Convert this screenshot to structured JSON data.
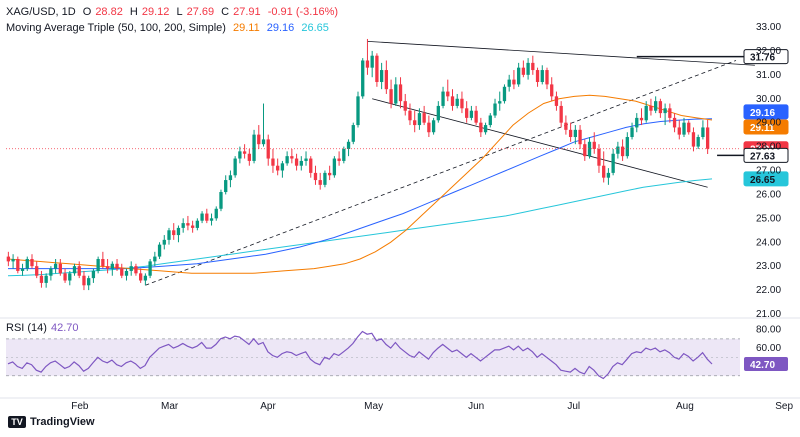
{
  "header": {
    "symbol": "XAG/USD, 1D",
    "open_label": "O",
    "open": "28.82",
    "high_label": "H",
    "high": "29.12",
    "low_label": "L",
    "low": "27.69",
    "close_label": "C",
    "close": "27.91",
    "change": "-0.91 (-3.16%)",
    "ma_title": "Moving Average Triple (50, 100, 200, Simple)",
    "ma50": "29.11",
    "ma100": "29.16",
    "ma200": "26.65"
  },
  "rsi_header": {
    "label": "RSI (14)",
    "value": "42.70"
  },
  "brand": {
    "logo": "TV",
    "name": "TradingView"
  },
  "colors": {
    "up": "#089981",
    "down": "#f23645",
    "ma50": "#f57c00",
    "ma100": "#2962ff",
    "ma200": "#26c6da",
    "rsi": "#7e57c2",
    "rsi_band": "#ede7f6",
    "trend": "#131722"
  },
  "chart_data": [
    {
      "type": "candlestick",
      "ylim": [
        21.0,
        33.0
      ],
      "y_ticks": [
        "33.00",
        "32.00",
        "31.00",
        "30.00",
        "29.00",
        "28.00",
        "27.00",
        "26.00",
        "25.00",
        "24.00",
        "23.00",
        "22.00",
        "21.00"
      ],
      "x_labels": [
        "Feb",
        "Mar",
        "Apr",
        "May",
        "Jun",
        "Jul",
        "Aug",
        "Sep"
      ],
      "x_label_index": [
        15,
        34,
        55,
        77,
        99,
        120,
        143,
        164
      ],
      "candles": [
        [
          23.4,
          23.6,
          23.0,
          23.2
        ],
        [
          23.2,
          23.5,
          22.9,
          23.3
        ],
        [
          23.3,
          23.4,
          22.7,
          22.8
        ],
        [
          22.8,
          23.1,
          22.6,
          22.9
        ],
        [
          22.9,
          23.4,
          22.8,
          23.3
        ],
        [
          23.3,
          23.5,
          22.9,
          23.0
        ],
        [
          23.0,
          23.2,
          22.5,
          22.6
        ],
        [
          22.6,
          22.8,
          22.1,
          22.3
        ],
        [
          22.3,
          22.7,
          22.1,
          22.6
        ],
        [
          22.6,
          23.0,
          22.4,
          22.9
        ],
        [
          22.9,
          23.3,
          22.7,
          23.1
        ],
        [
          23.1,
          23.3,
          22.6,
          22.7
        ],
        [
          22.7,
          22.9,
          22.3,
          22.4
        ],
        [
          22.4,
          22.8,
          22.2,
          22.7
        ],
        [
          22.7,
          23.1,
          22.6,
          23.0
        ],
        [
          23.0,
          23.2,
          22.5,
          22.6
        ],
        [
          22.6,
          22.8,
          22.0,
          22.2
        ],
        [
          22.2,
          22.6,
          22.0,
          22.5
        ],
        [
          22.5,
          22.9,
          22.3,
          22.8
        ],
        [
          22.8,
          23.4,
          22.7,
          23.3
        ],
        [
          23.3,
          23.6,
          22.9,
          23.0
        ],
        [
          23.0,
          23.3,
          22.7,
          22.9
        ],
        [
          22.9,
          23.2,
          22.6,
          23.1
        ],
        [
          23.1,
          23.3,
          22.8,
          22.9
        ],
        [
          22.9,
          23.1,
          22.5,
          22.6
        ],
        [
          22.6,
          22.9,
          22.4,
          22.8
        ],
        [
          22.8,
          23.2,
          22.6,
          23.0
        ],
        [
          23.0,
          23.1,
          22.6,
          22.7
        ],
        [
          22.7,
          22.9,
          22.3,
          22.4
        ],
        [
          22.4,
          22.7,
          22.2,
          22.6
        ],
        [
          22.6,
          23.3,
          22.5,
          23.2
        ],
        [
          23.2,
          23.6,
          23.0,
          23.4
        ],
        [
          23.4,
          24.0,
          23.3,
          23.9
        ],
        [
          23.9,
          24.3,
          23.7,
          24.1
        ],
        [
          24.1,
          24.6,
          23.9,
          24.5
        ],
        [
          24.5,
          24.8,
          24.1,
          24.3
        ],
        [
          24.3,
          24.7,
          24.0,
          24.6
        ],
        [
          24.6,
          25.0,
          24.4,
          24.8
        ],
        [
          24.8,
          25.1,
          24.5,
          24.7
        ],
        [
          24.7,
          24.9,
          24.4,
          24.6
        ],
        [
          24.6,
          25.0,
          24.5,
          24.9
        ],
        [
          24.9,
          25.3,
          24.8,
          25.2
        ],
        [
          25.2,
          25.4,
          24.8,
          24.9
        ],
        [
          24.9,
          25.2,
          24.7,
          25.0
        ],
        [
          25.0,
          25.5,
          24.9,
          25.4
        ],
        [
          25.4,
          26.2,
          25.3,
          26.1
        ],
        [
          26.1,
          26.8,
          26.0,
          26.6
        ],
        [
          26.6,
          27.0,
          26.3,
          26.8
        ],
        [
          26.8,
          27.6,
          26.7,
          27.5
        ],
        [
          27.5,
          28.0,
          27.3,
          27.8
        ],
        [
          27.8,
          28.1,
          27.5,
          27.7
        ],
        [
          27.7,
          27.9,
          27.2,
          27.4
        ],
        [
          27.4,
          28.7,
          27.3,
          28.5
        ],
        [
          28.5,
          28.9,
          27.9,
          28.1
        ],
        [
          28.1,
          29.8,
          28.0,
          28.3
        ],
        [
          28.3,
          28.5,
          27.2,
          27.5
        ],
        [
          27.5,
          27.9,
          26.9,
          27.2
        ],
        [
          27.2,
          27.5,
          26.8,
          27.0
        ],
        [
          27.0,
          27.4,
          26.7,
          27.3
        ],
        [
          27.3,
          27.8,
          27.2,
          27.6
        ],
        [
          27.6,
          27.9,
          27.3,
          27.5
        ],
        [
          27.5,
          27.7,
          27.0,
          27.2
        ],
        [
          27.2,
          27.6,
          27.0,
          27.4
        ],
        [
          27.4,
          27.8,
          27.2,
          27.5
        ],
        [
          27.5,
          27.6,
          26.7,
          26.9
        ],
        [
          26.9,
          27.2,
          26.4,
          26.6
        ],
        [
          26.6,
          26.9,
          26.2,
          26.4
        ],
        [
          26.4,
          27.0,
          26.3,
          26.9
        ],
        [
          26.9,
          27.2,
          26.6,
          26.8
        ],
        [
          26.8,
          27.6,
          26.7,
          27.5
        ],
        [
          27.5,
          27.8,
          27.2,
          27.4
        ],
        [
          27.4,
          28.0,
          27.3,
          27.9
        ],
        [
          27.9,
          28.3,
          27.6,
          28.2
        ],
        [
          28.2,
          29.0,
          28.1,
          28.9
        ],
        [
          28.9,
          30.3,
          28.8,
          30.1
        ],
        [
          30.1,
          31.7,
          30.0,
          31.6
        ],
        [
          31.6,
          32.5,
          31.0,
          31.3
        ],
        [
          31.3,
          32.0,
          30.9,
          31.8
        ],
        [
          31.8,
          31.9,
          30.5,
          30.7
        ],
        [
          30.7,
          31.5,
          30.4,
          31.2
        ],
        [
          31.2,
          31.6,
          30.2,
          30.4
        ],
        [
          30.4,
          30.8,
          29.6,
          29.8
        ],
        [
          29.8,
          30.9,
          29.7,
          30.6
        ],
        [
          30.6,
          30.9,
          29.6,
          29.9
        ],
        [
          29.9,
          30.2,
          29.3,
          29.5
        ],
        [
          29.5,
          29.8,
          28.9,
          29.1
        ],
        [
          29.1,
          29.5,
          28.6,
          28.9
        ],
        [
          28.9,
          29.6,
          28.7,
          29.4
        ],
        [
          29.4,
          29.7,
          28.9,
          29.0
        ],
        [
          29.0,
          29.3,
          28.4,
          28.6
        ],
        [
          28.6,
          29.2,
          28.5,
          29.1
        ],
        [
          29.1,
          29.9,
          29.0,
          29.7
        ],
        [
          29.7,
          30.5,
          29.6,
          30.3
        ],
        [
          30.3,
          30.8,
          29.9,
          30.1
        ],
        [
          30.1,
          30.4,
          29.5,
          29.7
        ],
        [
          29.7,
          30.2,
          29.6,
          30.0
        ],
        [
          30.0,
          30.3,
          29.4,
          29.6
        ],
        [
          29.6,
          29.9,
          29.0,
          29.2
        ],
        [
          29.2,
          29.7,
          29.1,
          29.5
        ],
        [
          29.5,
          29.7,
          28.9,
          29.0
        ],
        [
          29.0,
          29.2,
          28.4,
          28.6
        ],
        [
          28.6,
          29.0,
          28.5,
          28.9
        ],
        [
          28.9,
          29.4,
          28.8,
          29.3
        ],
        [
          29.3,
          30.0,
          29.2,
          29.8
        ],
        [
          29.8,
          30.3,
          29.5,
          29.9
        ],
        [
          29.9,
          30.6,
          29.8,
          30.5
        ],
        [
          30.5,
          31.0,
          30.3,
          30.8
        ],
        [
          30.8,
          31.2,
          30.4,
          30.6
        ],
        [
          30.6,
          31.5,
          30.5,
          31.3
        ],
        [
          31.3,
          31.6,
          30.9,
          31.0
        ],
        [
          31.0,
          31.7,
          30.8,
          31.5
        ],
        [
          31.5,
          31.8,
          31.0,
          31.2
        ],
        [
          31.2,
          31.3,
          30.5,
          30.7
        ],
        [
          30.7,
          31.4,
          30.6,
          31.2
        ],
        [
          31.2,
          31.3,
          30.4,
          30.6
        ],
        [
          30.6,
          30.9,
          29.9,
          30.1
        ],
        [
          30.1,
          30.3,
          29.5,
          29.7
        ],
        [
          29.7,
          29.9,
          28.8,
          29.0
        ],
        [
          29.0,
          29.3,
          28.5,
          28.7
        ],
        [
          28.7,
          29.0,
          28.2,
          28.4
        ],
        [
          28.4,
          28.9,
          28.1,
          28.7
        ],
        [
          28.7,
          28.9,
          27.9,
          28.1
        ],
        [
          28.1,
          28.3,
          27.4,
          27.6
        ],
        [
          27.6,
          28.4,
          27.5,
          28.2
        ],
        [
          28.2,
          28.6,
          27.7,
          27.9
        ],
        [
          27.9,
          28.1,
          26.9,
          27.2
        ],
        [
          27.2,
          27.8,
          26.5,
          26.7
        ],
        [
          26.7,
          27.1,
          26.4,
          26.9
        ],
        [
          26.9,
          27.9,
          26.8,
          27.7
        ],
        [
          27.7,
          28.2,
          27.5,
          28.0
        ],
        [
          28.0,
          28.3,
          27.4,
          27.6
        ],
        [
          27.6,
          28.6,
          27.5,
          28.4
        ],
        [
          28.4,
          29.0,
          28.3,
          28.8
        ],
        [
          28.8,
          29.4,
          28.6,
          29.2
        ],
        [
          29.2,
          29.6,
          28.9,
          29.1
        ],
        [
          29.1,
          29.9,
          29.0,
          29.7
        ],
        [
          29.7,
          30.0,
          29.3,
          29.5
        ],
        [
          29.5,
          30.1,
          29.4,
          29.9
        ],
        [
          29.9,
          30.0,
          29.2,
          29.4
        ],
        [
          29.4,
          29.8,
          28.9,
          29.6
        ],
        [
          29.6,
          29.8,
          29.0,
          29.2
        ],
        [
          29.2,
          29.4,
          28.6,
          28.8
        ],
        [
          28.8,
          29.1,
          28.3,
          28.5
        ],
        [
          28.5,
          29.2,
          28.4,
          29.0
        ],
        [
          29.0,
          29.1,
          28.5,
          28.6
        ],
        [
          28.6,
          28.8,
          27.8,
          28.0
        ],
        [
          28.0,
          28.5,
          27.9,
          28.4
        ],
        [
          28.4,
          29.1,
          28.3,
          28.8
        ],
        [
          28.8,
          29.12,
          27.69,
          27.91
        ]
      ],
      "ma50": [
        23.3,
        23.25,
        23.2,
        23.15,
        23.1,
        23.05,
        23.0,
        22.95,
        22.9,
        22.85,
        22.8,
        22.75,
        22.7,
        22.7,
        22.7,
        22.7,
        22.7,
        22.75,
        22.8,
        22.85,
        22.9,
        23.0,
        23.1,
        23.3,
        23.6,
        24.0,
        24.5,
        25.1,
        25.7,
        26.3,
        26.9,
        27.5,
        28.2,
        28.9,
        29.4,
        29.8,
        30.0,
        30.1,
        30.15,
        30.1,
        30.0,
        29.9,
        29.7,
        29.5,
        29.3,
        29.2,
        29.11
      ],
      "ma100": [
        22.9,
        22.9,
        22.9,
        22.9,
        22.9,
        22.9,
        22.9,
        22.9,
        22.95,
        23.0,
        23.05,
        23.1,
        23.2,
        23.3,
        23.4,
        23.5,
        23.65,
        23.8,
        24.0,
        24.2,
        24.45,
        24.7,
        24.95,
        25.2,
        25.5,
        25.8,
        26.1,
        26.4,
        26.7,
        27.0,
        27.3,
        27.6,
        27.9,
        28.2,
        28.4,
        28.6,
        28.8,
        28.95,
        29.05,
        29.1,
        29.15,
        29.16
      ],
      "ma200": [
        22.6,
        22.62,
        22.65,
        22.7,
        22.75,
        22.8,
        22.85,
        22.92,
        23.0,
        23.1,
        23.2,
        23.3,
        23.4,
        23.5,
        23.6,
        23.7,
        23.8,
        23.9,
        24.0,
        24.1,
        24.2,
        24.3,
        24.4,
        24.5,
        24.6,
        24.7,
        24.8,
        24.9,
        25.0,
        25.1,
        25.25,
        25.4,
        25.55,
        25.7,
        25.85,
        26.0,
        26.15,
        26.3,
        26.4,
        26.5,
        26.58,
        26.65
      ],
      "horizontal_levels": [
        31.76,
        27.63
      ],
      "last_close_line": 27.91,
      "price_labels": [
        {
          "text": "31.76",
          "bg": "#ffffff",
          "fg": "#131722"
        },
        {
          "text": "29.16",
          "bg": "#2962ff",
          "fg": "#ffffff"
        },
        {
          "text": "29.11",
          "bg": "#f57c00",
          "fg": "#ffffff"
        },
        {
          "text": "27.91",
          "bg": "#f23645",
          "fg": "#ffffff"
        },
        {
          "text": "27.63",
          "bg": "#ffffff",
          "fg": "#131722"
        },
        {
          "text": "26.65",
          "bg": "#26c6da",
          "fg": "#131722"
        }
      ]
    },
    {
      "type": "line",
      "title": "RSI (14)",
      "ylim": [
        20,
        85
      ],
      "y_ticks": [
        "80.00",
        "60.00",
        "42.70"
      ],
      "band": [
        30,
        70
      ],
      "mid": 50,
      "values": [
        43,
        45,
        40,
        38,
        44,
        42,
        36,
        34,
        40,
        44,
        46,
        42,
        38,
        40,
        45,
        41,
        35,
        38,
        44,
        50,
        46,
        44,
        47,
        42,
        40,
        44,
        46,
        43,
        38,
        41,
        50,
        55,
        60,
        62,
        64,
        60,
        62,
        65,
        62,
        60,
        62,
        66,
        60,
        60,
        64,
        70,
        72,
        70,
        73,
        72,
        68,
        64,
        70,
        64,
        66,
        56,
        52,
        50,
        54,
        56,
        55,
        52,
        54,
        56,
        48,
        44,
        42,
        50,
        48,
        54,
        52,
        56,
        60,
        65,
        72,
        78,
        75,
        76,
        68,
        70,
        64,
        60,
        66,
        60,
        56,
        52,
        50,
        56,
        52,
        48,
        55,
        60,
        64,
        60,
        56,
        58,
        54,
        50,
        54,
        50,
        46,
        50,
        54,
        58,
        58,
        60,
        62,
        58,
        62,
        57,
        60,
        56,
        50,
        54,
        50,
        46,
        42,
        36,
        35,
        34,
        38,
        34,
        32,
        40,
        36,
        30,
        27,
        32,
        40,
        44,
        42,
        48,
        54,
        56,
        55,
        60,
        58,
        60,
        56,
        58,
        55,
        50,
        48,
        54,
        51,
        46,
        50,
        55,
        48,
        42.7
      ]
    }
  ]
}
